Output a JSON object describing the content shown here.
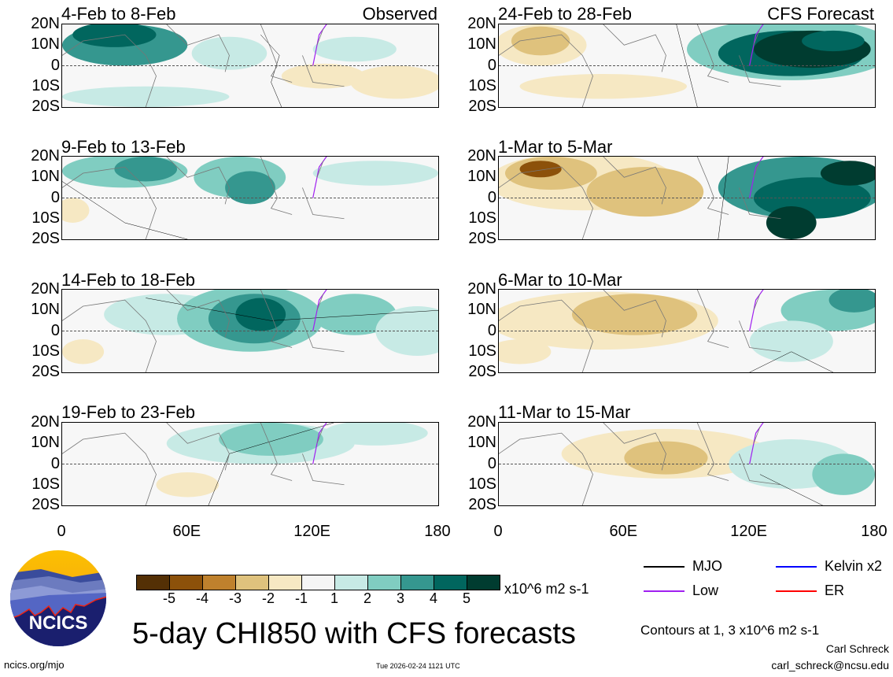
{
  "panels": {
    "left": [
      {
        "title": "4-Feb to 8-Feb",
        "tag": "Observed"
      },
      {
        "title": "9-Feb to 13-Feb"
      },
      {
        "title": "14-Feb to 18-Feb"
      },
      {
        "title": "19-Feb to 23-Feb"
      }
    ],
    "right": [
      {
        "title": "24-Feb to 28-Feb",
        "tag": "CFS Forecast"
      },
      {
        "title": "1-Mar to 5-Mar"
      },
      {
        "title": "6-Mar to 10-Mar"
      },
      {
        "title": "11-Mar to 15-Mar"
      }
    ]
  },
  "lat_labels": [
    "20N",
    "10N",
    "0",
    "10S",
    "20S"
  ],
  "lon_labels": [
    "0",
    "60E",
    "120E",
    "180"
  ],
  "colorbar": {
    "colors": [
      "#543005",
      "#8c510a",
      "#bf812d",
      "#dfc27d",
      "#f6e8c3",
      "#f5f5f5",
      "#c7eae5",
      "#80cdc1",
      "#35978f",
      "#01665e",
      "#003c30"
    ],
    "labels": [
      "-5",
      "-4",
      "-3",
      "-2",
      "-1",
      "1",
      "2",
      "3",
      "4",
      "5"
    ],
    "units": "x10^6 m2 s-1"
  },
  "title": "5-day CHI850 with CFS forecasts",
  "timestamp": "Tue 2026-02-24 1121 UTC",
  "logo": {
    "text": "NCICS"
  },
  "url": "ncics.org/mjo",
  "legend": [
    {
      "label": "MJO",
      "color": "#000000"
    },
    {
      "label": "Kelvin x2",
      "color": "#0000ff"
    },
    {
      "label": "Low",
      "color": "#a020f0"
    },
    {
      "label": "ER",
      "color": "#ff0000"
    }
  ],
  "contours_note": "Contours at 1, 3 x10^6 m2 s-1",
  "author": "Carl Schreck",
  "email": "carl_schreck@ncsu.edu"
}
